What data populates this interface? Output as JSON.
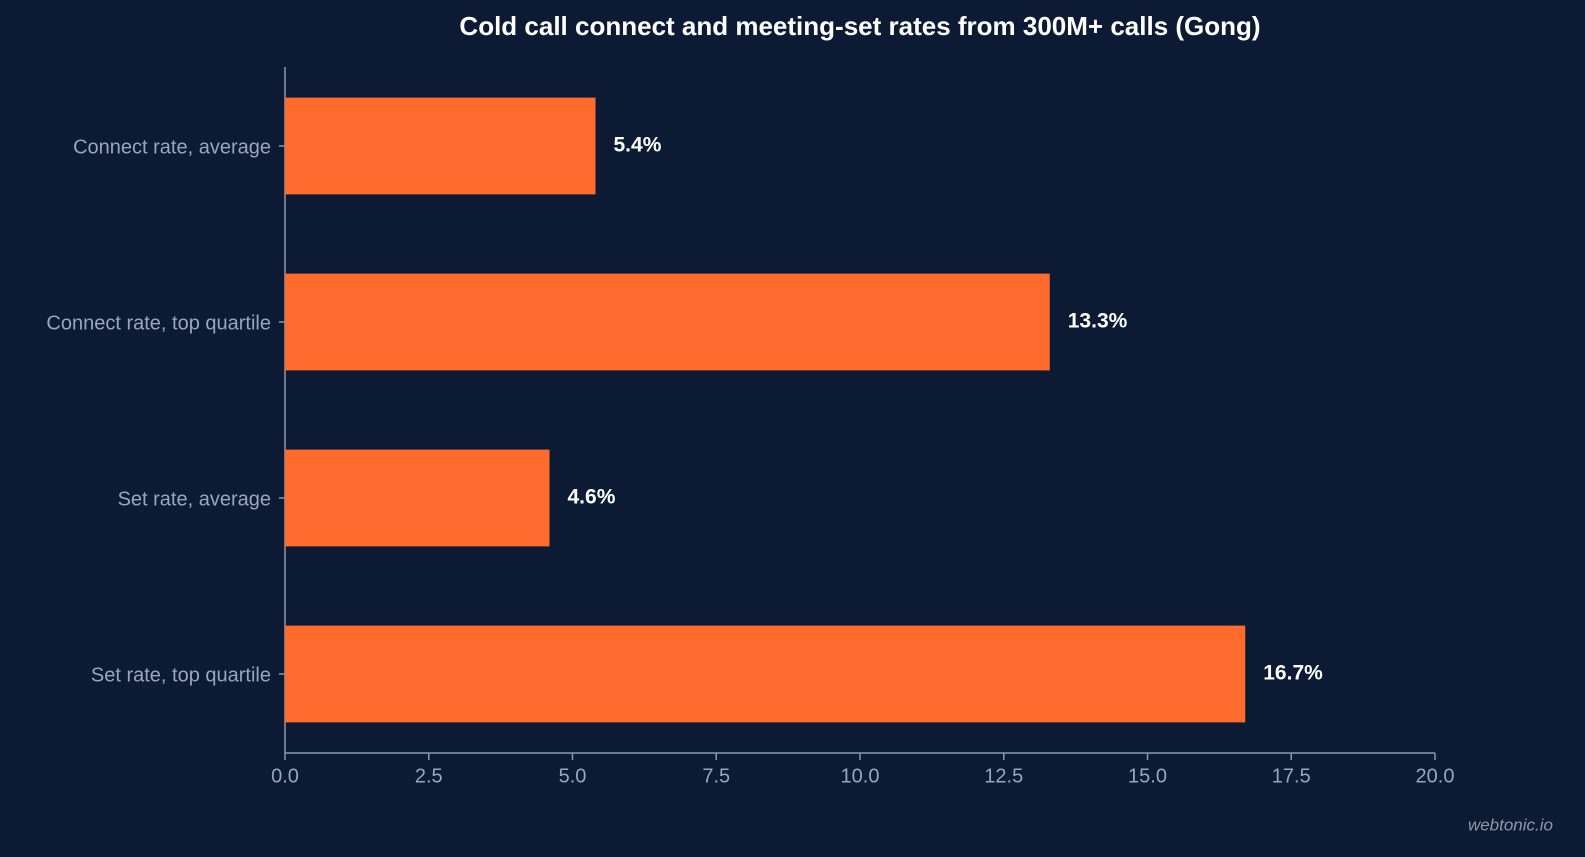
{
  "chart_data": {
    "type": "barh",
    "title": "Cold call connect and meeting-set rates from 300M+ calls (Gong)",
    "categories": [
      "Connect rate, average",
      "Connect rate, top quartile",
      "Set rate, average",
      "Set rate, top quartile"
    ],
    "values": [
      5.4,
      13.3,
      4.6,
      16.7
    ],
    "value_labels": [
      "5.4%",
      "13.3%",
      "4.6%",
      "16.7%"
    ],
    "color": "#ff6b2c",
    "xlim": [
      0,
      20
    ],
    "xticks": [
      {
        "value": 0,
        "label": "0.0"
      },
      2.5,
      {
        "value": 5,
        "label": "5.0"
      },
      7.5,
      {
        "value": 10,
        "label": "10.0"
      },
      12.5,
      {
        "value": 15,
        "label": "15.0"
      },
      17.5,
      {
        "value": 20,
        "label": "20.0"
      }
    ],
    "watermark": "webtonic.io"
  }
}
